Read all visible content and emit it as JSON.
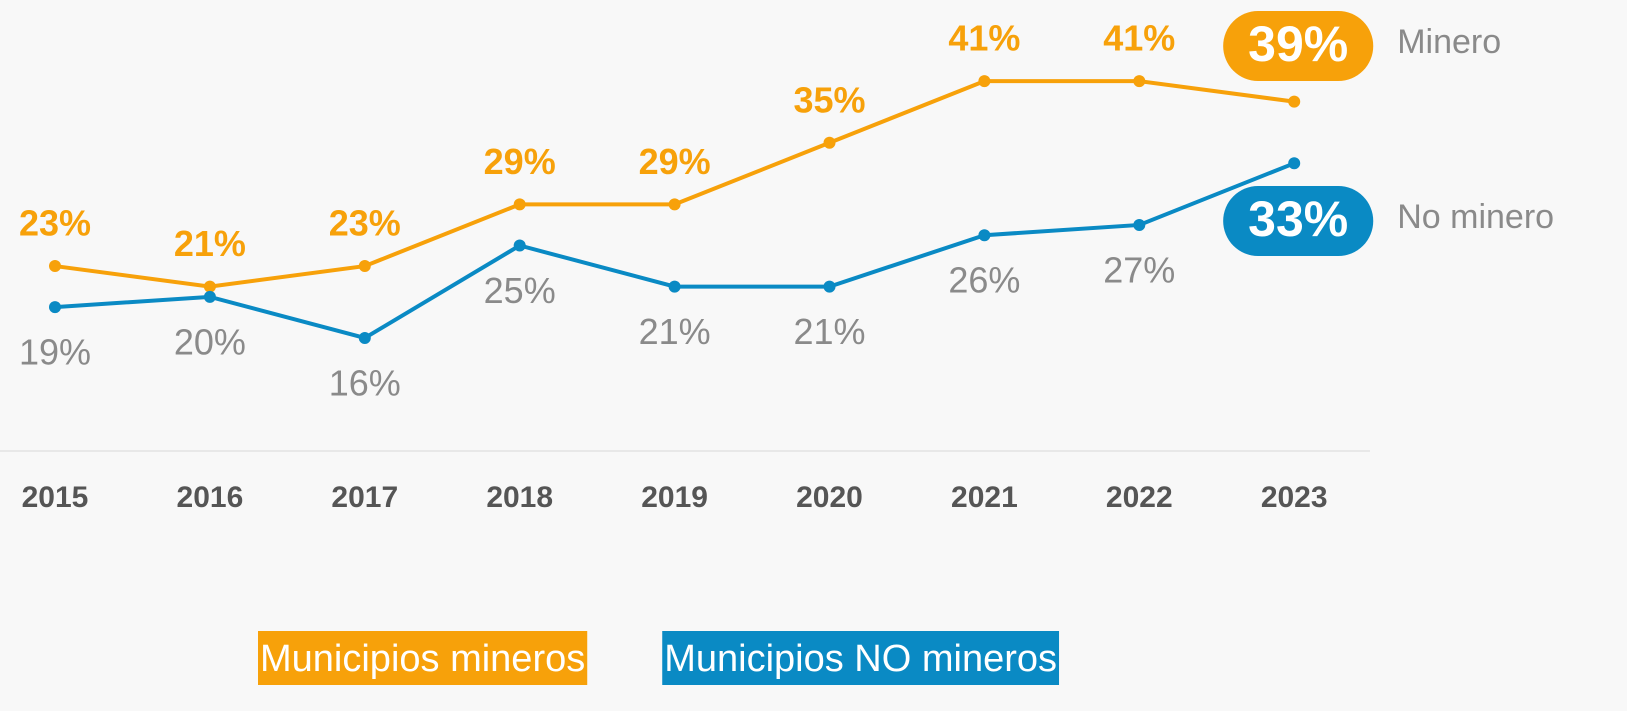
{
  "chart_data": {
    "type": "line",
    "categories": [
      "2015",
      "2016",
      "2017",
      "2018",
      "2019",
      "2020",
      "2021",
      "2022",
      "2023"
    ],
    "series": [
      {
        "name": "Municipios mineros",
        "end_label": "Minero",
        "color": "#f7a10a",
        "values": [
          23,
          21,
          23,
          29,
          29,
          35,
          41,
          41,
          39
        ],
        "value_labels": [
          "23%",
          "21%",
          "23%",
          "29%",
          "29%",
          "35%",
          "41%",
          "41%",
          "39%"
        ]
      },
      {
        "name": "Municipios NO mineros",
        "end_label": "No minero",
        "color": "#0a8ac4",
        "values": [
          19,
          20,
          16,
          25,
          21,
          21,
          26,
          27,
          33
        ],
        "value_labels": [
          "19%",
          "20%",
          "16%",
          "25%",
          "21%",
          "21%",
          "26%",
          "27%",
          "33%"
        ]
      }
    ],
    "ylim": [
      5,
      45
    ]
  }
}
